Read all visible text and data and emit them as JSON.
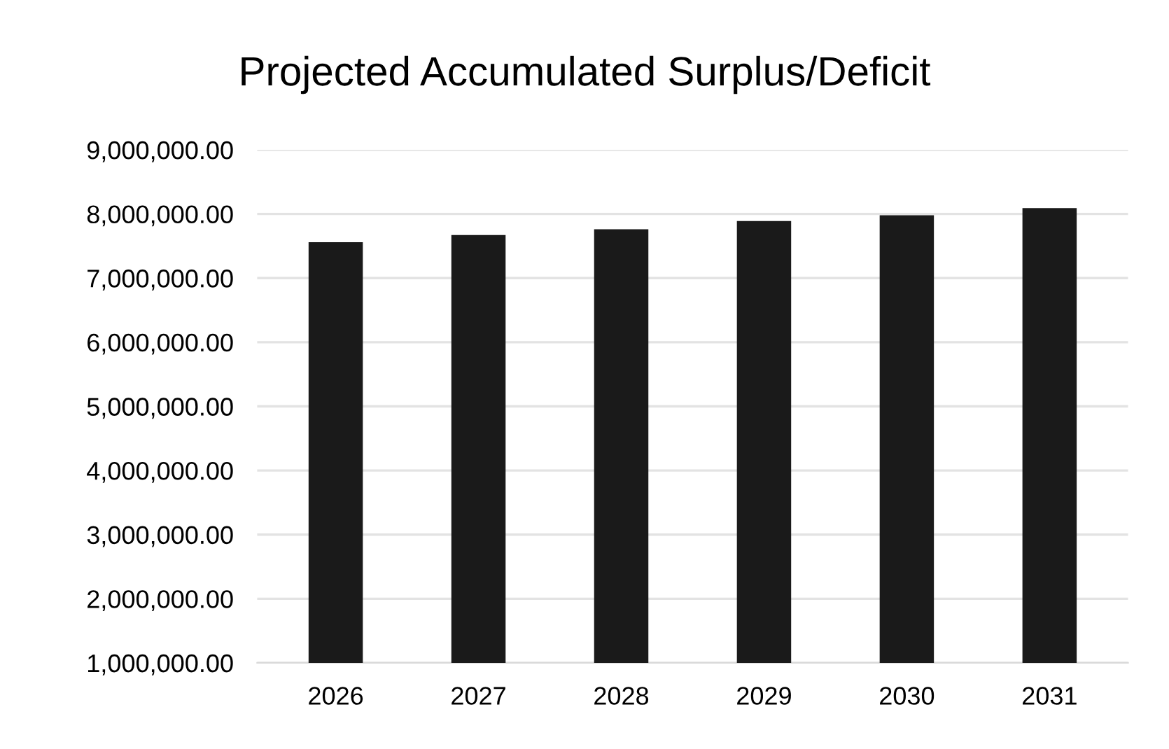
{
  "chart_data": {
    "type": "bar",
    "title": "Projected Accumulated Surplus/Deficit",
    "categories": [
      "2026",
      "2027",
      "2028",
      "2029",
      "2030",
      "2031"
    ],
    "values": [
      7560000,
      7670000,
      7760000,
      7890000,
      7980000,
      8090000
    ],
    "color": "#1a1a1a",
    "ylim": [
      1000000,
      9000000
    ],
    "yticks": [
      {
        "value": 1000000,
        "label": "1,000,000.00"
      },
      {
        "value": 2000000,
        "label": "2,000,000.00"
      },
      {
        "value": 3000000,
        "label": "3,000,000.00"
      },
      {
        "value": 4000000,
        "label": "4,000,000.00"
      },
      {
        "value": 5000000,
        "label": "5,000,000.00"
      },
      {
        "value": 6000000,
        "label": "6,000,000.00"
      },
      {
        "value": 7000000,
        "label": "7,000,000.00"
      },
      {
        "value": 8000000,
        "label": "8,000,000.00"
      },
      {
        "value": 9000000,
        "label": "9,000,000.00"
      }
    ],
    "grid": "y"
  }
}
